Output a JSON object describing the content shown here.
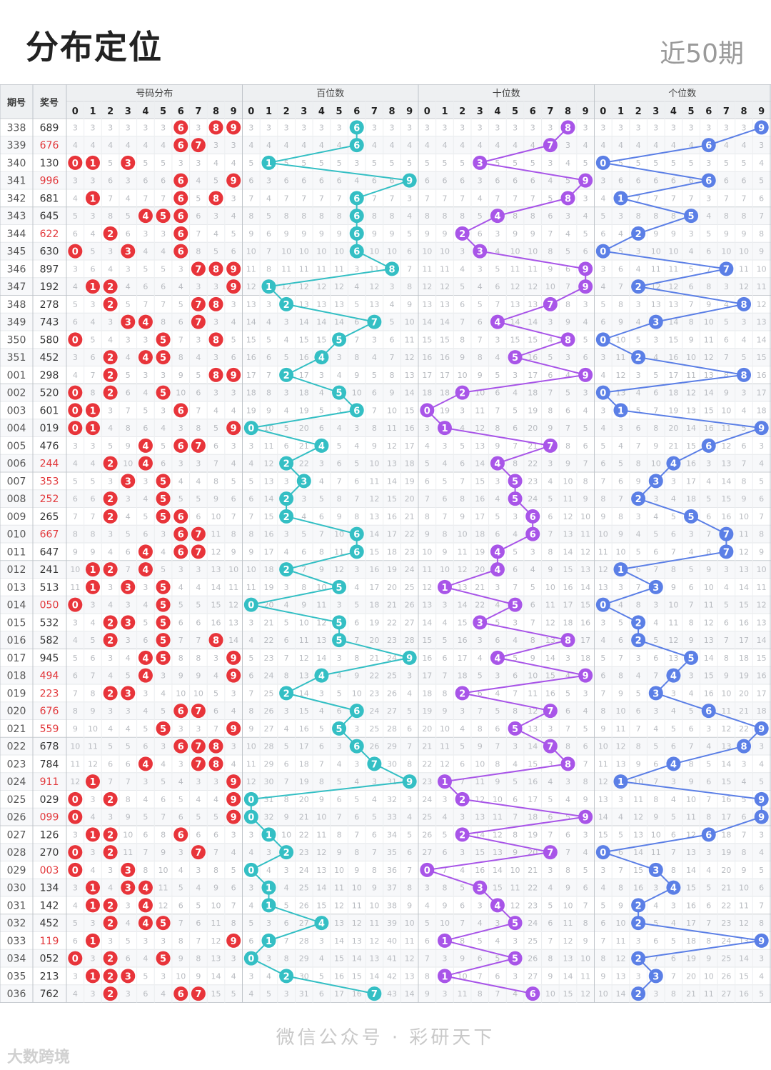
{
  "header": {
    "title": "分布定位",
    "period": "近50期"
  },
  "table": {
    "col_issue": "期号",
    "col_prize": "奖号",
    "groups": [
      "号码分布",
      "百位数",
      "十位数",
      "个位数"
    ],
    "digits": [
      "0",
      "1",
      "2",
      "3",
      "4",
      "5",
      "6",
      "7",
      "8",
      "9"
    ],
    "rows": [
      [
        "338",
        "689"
      ],
      [
        "339",
        "676"
      ],
      [
        "340",
        "130"
      ],
      [
        "341",
        "996"
      ],
      [
        "342",
        "681"
      ],
      [
        "343",
        "645"
      ],
      [
        "344",
        "622"
      ],
      [
        "345",
        "630"
      ],
      [
        "346",
        "897"
      ],
      [
        "347",
        "192"
      ],
      [
        "348",
        "278"
      ],
      [
        "349",
        "743"
      ],
      [
        "350",
        "580"
      ],
      [
        "351",
        "452"
      ],
      [
        "001",
        "298"
      ],
      [
        "002",
        "520"
      ],
      [
        "003",
        "601"
      ],
      [
        "004",
        "019"
      ],
      [
        "005",
        "476"
      ],
      [
        "006",
        "244"
      ],
      [
        "007",
        "353"
      ],
      [
        "008",
        "252"
      ],
      [
        "009",
        "265"
      ],
      [
        "010",
        "667"
      ],
      [
        "011",
        "647"
      ],
      [
        "012",
        "241"
      ],
      [
        "013",
        "513"
      ],
      [
        "014",
        "050"
      ],
      [
        "015",
        "532"
      ],
      [
        "016",
        "582"
      ],
      [
        "017",
        "945"
      ],
      [
        "018",
        "494"
      ],
      [
        "019",
        "223"
      ],
      [
        "020",
        "676"
      ],
      [
        "021",
        "559"
      ],
      [
        "022",
        "678"
      ],
      [
        "023",
        "784"
      ],
      [
        "024",
        "911"
      ],
      [
        "025",
        "029"
      ],
      [
        "026",
        "099"
      ],
      [
        "027",
        "126"
      ],
      [
        "028",
        "270"
      ],
      [
        "029",
        "003"
      ],
      [
        "030",
        "134"
      ],
      [
        "031",
        "142"
      ],
      [
        "032",
        "452"
      ],
      [
        "033",
        "119"
      ],
      [
        "034",
        "052"
      ],
      [
        "035",
        "213"
      ],
      [
        "036",
        "762"
      ]
    ]
  },
  "colors": {
    "dist": "#e8343a",
    "hundreds": "#34bfc4",
    "tens": "#a855e8",
    "units": "#5b7fe6",
    "red_prize": "#e2383b",
    "header_bg": "#eef0f2"
  },
  "footer": "微信公众号 · 彩研天下",
  "watermark": "大数跨境"
}
